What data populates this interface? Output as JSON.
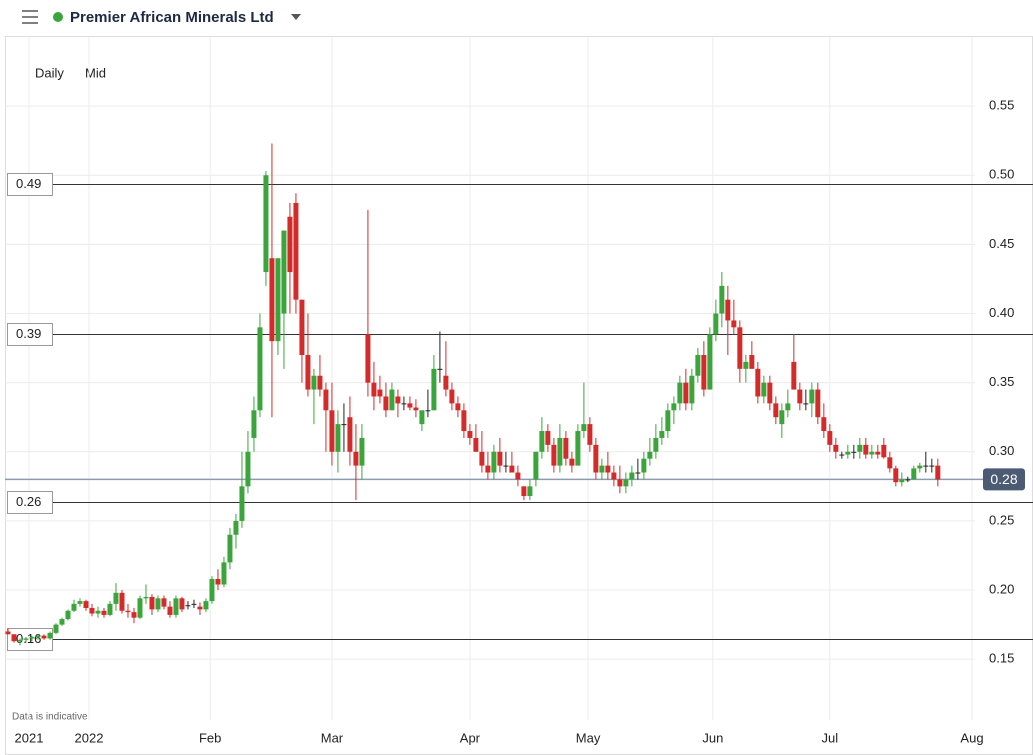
{
  "header": {
    "title": "Premier African Minerals Ltd"
  },
  "controls": {
    "interval": "Daily",
    "price": "Mid"
  },
  "footnote": "Data is indicative",
  "chart_data": {
    "type": "candlestick",
    "up_color": "#3aa53a",
    "down_color": "#d42a2a",
    "flat_color": "#222222",
    "ylim": [
      0.106,
      0.6
    ],
    "yticks": [
      0.15,
      {
        "value": 0.2,
        "label": "0.20"
      },
      0.25,
      {
        "value": 0.3,
        "label": "0.30"
      },
      0.35,
      {
        "value": 0.4,
        "label": "0.40"
      },
      0.45,
      {
        "value": 0.5,
        "label": "0.50"
      },
      0.55
    ],
    "xlim": [
      -0.5,
      161.2
    ],
    "xticks": [
      {
        "value": 3.5,
        "label": "2021"
      },
      {
        "value": 13.5,
        "label": "2022"
      },
      {
        "value": 33.7,
        "label": "Feb"
      },
      {
        "value": 54,
        "label": "Mar"
      },
      {
        "value": 77,
        "label": "Apr"
      },
      {
        "value": 96.7,
        "label": "May"
      },
      {
        "value": 117.5,
        "label": "Jun"
      },
      {
        "value": 137,
        "label": "Jul"
      },
      {
        "value": 160.7,
        "label": "Aug"
      }
    ],
    "levels": [
      {
        "value": 0.4935,
        "label": "0.49"
      },
      {
        "value": 0.385,
        "label": "0.39"
      },
      {
        "value": 0.264,
        "label": "0.26"
      },
      {
        "value": 0.1645,
        "label": "0.16"
      }
    ],
    "last_price": 0.28,
    "candles": [
      [
        0.17,
        0.172,
        0.168,
        0.168
      ],
      [
        0.168,
        0.168,
        0.162,
        0.163
      ],
      [
        0.163,
        0.165,
        0.16,
        0.164
      ],
      [
        0.164,
        0.166,
        0.162,
        0.165
      ],
      [
        0.165,
        0.167,
        0.163,
        0.166
      ],
      [
        0.166,
        0.168,
        0.164,
        0.167
      ],
      [
        0.167,
        0.168,
        0.164,
        0.165
      ],
      [
        0.165,
        0.17,
        0.164,
        0.169
      ],
      [
        0.169,
        0.176,
        0.168,
        0.175
      ],
      [
        0.175,
        0.18,
        0.174,
        0.179
      ],
      [
        0.179,
        0.186,
        0.178,
        0.185
      ],
      [
        0.185,
        0.193,
        0.184,
        0.19
      ],
      [
        0.19,
        0.194,
        0.188,
        0.192
      ],
      [
        0.192,
        0.193,
        0.185,
        0.187
      ],
      [
        0.187,
        0.19,
        0.181,
        0.183
      ],
      [
        0.183,
        0.188,
        0.18,
        0.185
      ],
      [
        0.185,
        0.187,
        0.18,
        0.182
      ],
      [
        0.182,
        0.192,
        0.181,
        0.19
      ],
      [
        0.19,
        0.205,
        0.185,
        0.198
      ],
      [
        0.198,
        0.2,
        0.183,
        0.185
      ],
      [
        0.185,
        0.19,
        0.18,
        0.184
      ],
      [
        0.184,
        0.187,
        0.176,
        0.18
      ],
      [
        0.18,
        0.196,
        0.179,
        0.194
      ],
      [
        0.194,
        0.204,
        0.19,
        0.195
      ],
      [
        0.195,
        0.197,
        0.182,
        0.186
      ],
      [
        0.186,
        0.196,
        0.184,
        0.194
      ],
      [
        0.194,
        0.196,
        0.186,
        0.188
      ],
      [
        0.188,
        0.192,
        0.18,
        0.182
      ],
      [
        0.182,
        0.196,
        0.18,
        0.194
      ],
      [
        0.194,
        0.195,
        0.184,
        0.186
      ],
      [
        0.189,
        0.192,
        0.186,
        0.189
      ],
      [
        0.19,
        0.193,
        0.187,
        0.19
      ],
      [
        0.188,
        0.191,
        0.182,
        0.186
      ],
      [
        0.186,
        0.194,
        0.184,
        0.192
      ],
      [
        0.192,
        0.21,
        0.19,
        0.208
      ],
      [
        0.208,
        0.215,
        0.2,
        0.204
      ],
      [
        0.204,
        0.224,
        0.202,
        0.22
      ],
      [
        0.22,
        0.245,
        0.215,
        0.24
      ],
      [
        0.24,
        0.255,
        0.23,
        0.25
      ],
      [
        0.25,
        0.3,
        0.245,
        0.275
      ],
      [
        0.275,
        0.315,
        0.27,
        0.3
      ],
      [
        0.31,
        0.34,
        0.3,
        0.33
      ],
      [
        0.33,
        0.4,
        0.325,
        0.39
      ],
      [
        0.43,
        0.503,
        0.42,
        0.5
      ],
      [
        0.44,
        0.523,
        0.325,
        0.38
      ],
      [
        0.38,
        0.44,
        0.37,
        0.44
      ],
      [
        0.4,
        0.46,
        0.36,
        0.46
      ],
      [
        0.47,
        0.48,
        0.4,
        0.43
      ],
      [
        0.48,
        0.487,
        0.4,
        0.41
      ],
      [
        0.41,
        0.41,
        0.35,
        0.37
      ],
      [
        0.37,
        0.4,
        0.34,
        0.345
      ],
      [
        0.345,
        0.36,
        0.32,
        0.355
      ],
      [
        0.355,
        0.37,
        0.34,
        0.345
      ],
      [
        0.345,
        0.35,
        0.3,
        0.33
      ],
      [
        0.33,
        0.35,
        0.29,
        0.3
      ],
      [
        0.3,
        0.33,
        0.285,
        0.32
      ],
      [
        0.32,
        0.335,
        0.3,
        0.32
      ],
      [
        0.325,
        0.34,
        0.29,
        0.3
      ],
      [
        0.3,
        0.32,
        0.265,
        0.29
      ],
      [
        0.29,
        0.32,
        0.28,
        0.31
      ],
      [
        0.385,
        0.475,
        0.34,
        0.35
      ],
      [
        0.35,
        0.365,
        0.33,
        0.34
      ],
      [
        0.345,
        0.355,
        0.335,
        0.34
      ],
      [
        0.34,
        0.35,
        0.325,
        0.33
      ],
      [
        0.33,
        0.35,
        0.33,
        0.345
      ],
      [
        0.34,
        0.345,
        0.325,
        0.335
      ],
      [
        0.335,
        0.34,
        0.33,
        0.335
      ],
      [
        0.335,
        0.34,
        0.33,
        0.332
      ],
      [
        0.332,
        0.338,
        0.325,
        0.33
      ],
      [
        0.32,
        0.33,
        0.315,
        0.33
      ],
      [
        0.33,
        0.345,
        0.325,
        0.33
      ],
      [
        0.33,
        0.37,
        0.33,
        0.36
      ],
      [
        0.36,
        0.387,
        0.35,
        0.36
      ],
      [
        0.355,
        0.38,
        0.34,
        0.345
      ],
      [
        0.345,
        0.35,
        0.33,
        0.335
      ],
      [
        0.335,
        0.34,
        0.325,
        0.33
      ],
      [
        0.33,
        0.335,
        0.31,
        0.315
      ],
      [
        0.315,
        0.32,
        0.305,
        0.31
      ],
      [
        0.31,
        0.32,
        0.3,
        0.3
      ],
      [
        0.3,
        0.315,
        0.285,
        0.29
      ],
      [
        0.29,
        0.3,
        0.28,
        0.285
      ],
      [
        0.285,
        0.305,
        0.28,
        0.3
      ],
      [
        0.3,
        0.31,
        0.285,
        0.29
      ],
      [
        0.29,
        0.3,
        0.285,
        0.29
      ],
      [
        0.29,
        0.3,
        0.285,
        0.285
      ],
      [
        0.285,
        0.29,
        0.275,
        0.28
      ],
      [
        0.275,
        0.275,
        0.265,
        0.268
      ],
      [
        0.268,
        0.28,
        0.265,
        0.275
      ],
      [
        0.28,
        0.3,
        0.275,
        0.3
      ],
      [
        0.3,
        0.325,
        0.295,
        0.315
      ],
      [
        0.315,
        0.32,
        0.3,
        0.305
      ],
      [
        0.305,
        0.31,
        0.285,
        0.29
      ],
      [
        0.29,
        0.32,
        0.285,
        0.31
      ],
      [
        0.31,
        0.315,
        0.29,
        0.295
      ],
      [
        0.295,
        0.3,
        0.285,
        0.29
      ],
      [
        0.29,
        0.32,
        0.29,
        0.315
      ],
      [
        0.315,
        0.35,
        0.31,
        0.32
      ],
      [
        0.32,
        0.325,
        0.3,
        0.305
      ],
      [
        0.305,
        0.31,
        0.28,
        0.285
      ],
      [
        0.285,
        0.295,
        0.28,
        0.29
      ],
      [
        0.29,
        0.3,
        0.28,
        0.285
      ],
      [
        0.285,
        0.29,
        0.275,
        0.28
      ],
      [
        0.28,
        0.29,
        0.27,
        0.275
      ],
      [
        0.275,
        0.285,
        0.27,
        0.28
      ],
      [
        0.28,
        0.29,
        0.275,
        0.285
      ],
      [
        0.285,
        0.295,
        0.28,
        0.285
      ],
      [
        0.285,
        0.3,
        0.28,
        0.295
      ],
      [
        0.295,
        0.31,
        0.29,
        0.3
      ],
      [
        0.3,
        0.32,
        0.295,
        0.31
      ],
      [
        0.31,
        0.325,
        0.305,
        0.315
      ],
      [
        0.315,
        0.335,
        0.31,
        0.33
      ],
      [
        0.33,
        0.34,
        0.32,
        0.335
      ],
      [
        0.335,
        0.355,
        0.33,
        0.35
      ],
      [
        0.35,
        0.36,
        0.33,
        0.335
      ],
      [
        0.335,
        0.36,
        0.33,
        0.355
      ],
      [
        0.355,
        0.375,
        0.35,
        0.37
      ],
      [
        0.37,
        0.38,
        0.34,
        0.345
      ],
      [
        0.345,
        0.39,
        0.345,
        0.385
      ],
      [
        0.385,
        0.41,
        0.38,
        0.4
      ],
      [
        0.4,
        0.43,
        0.39,
        0.42
      ],
      [
        0.41,
        0.42,
        0.37,
        0.395
      ],
      [
        0.395,
        0.41,
        0.385,
        0.39
      ],
      [
        0.39,
        0.395,
        0.35,
        0.36
      ],
      [
        0.36,
        0.37,
        0.35,
        0.365
      ],
      [
        0.37,
        0.38,
        0.36,
        0.36
      ],
      [
        0.36,
        0.365,
        0.335,
        0.34
      ],
      [
        0.34,
        0.355,
        0.335,
        0.35
      ],
      [
        0.35,
        0.355,
        0.33,
        0.335
      ],
      [
        0.335,
        0.34,
        0.32,
        0.325
      ],
      [
        0.32,
        0.335,
        0.31,
        0.33
      ],
      [
        0.33,
        0.345,
        0.325,
        0.335
      ],
      [
        0.365,
        0.385,
        0.345,
        0.345
      ],
      [
        0.345,
        0.35,
        0.33,
        0.335
      ],
      [
        0.335,
        0.345,
        0.33,
        0.335
      ],
      [
        0.335,
        0.35,
        0.325,
        0.345
      ],
      [
        0.345,
        0.35,
        0.32,
        0.325
      ],
      [
        0.325,
        0.335,
        0.31,
        0.315
      ],
      [
        0.315,
        0.32,
        0.3,
        0.305
      ],
      [
        0.305,
        0.31,
        0.295,
        0.3
      ],
      [
        0.298,
        0.3,
        0.295,
        0.298
      ],
      [
        0.298,
        0.305,
        0.295,
        0.3
      ],
      [
        0.3,
        0.305,
        0.295,
        0.3
      ],
      [
        0.3,
        0.31,
        0.295,
        0.305
      ],
      [
        0.305,
        0.31,
        0.295,
        0.298
      ],
      [
        0.298,
        0.305,
        0.295,
        0.3
      ],
      [
        0.3,
        0.305,
        0.295,
        0.298
      ],
      [
        0.305,
        0.31,
        0.295,
        0.296
      ],
      [
        0.296,
        0.3,
        0.285,
        0.288
      ],
      [
        0.288,
        0.29,
        0.275,
        0.278
      ],
      [
        0.278,
        0.285,
        0.275,
        0.28
      ],
      [
        0.28,
        0.282,
        0.278,
        0.28
      ],
      [
        0.28,
        0.29,
        0.28,
        0.288
      ],
      [
        0.288,
        0.292,
        0.285,
        0.29
      ],
      [
        0.29,
        0.3,
        0.285,
        0.29
      ],
      [
        0.29,
        0.295,
        0.285,
        0.29
      ],
      [
        0.29,
        0.295,
        0.275,
        0.28
      ]
    ]
  }
}
